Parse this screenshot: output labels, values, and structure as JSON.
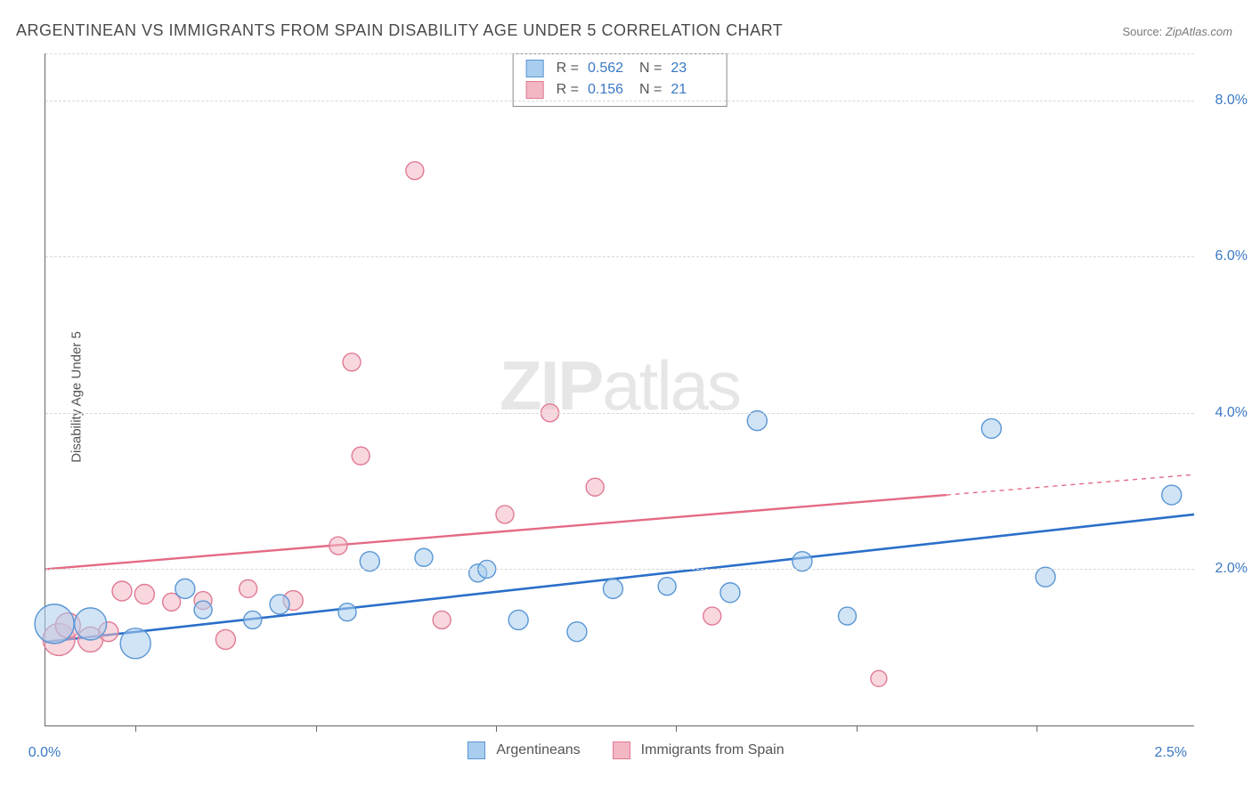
{
  "title": "ARGENTINEAN VS IMMIGRANTS FROM SPAIN DISABILITY AGE UNDER 5 CORRELATION CHART",
  "source": {
    "label": "Source: ",
    "link": "ZipAtlas.com"
  },
  "ylabel": "Disability Age Under 5",
  "watermark": {
    "bold": "ZIP",
    "rest": "atlas"
  },
  "chart": {
    "type": "scatter",
    "background_color": "#ffffff",
    "grid_color": "#d8d8d8",
    "axis_color": "#666666",
    "xlim": [
      0.0,
      2.55
    ],
    "ylim": [
      0.0,
      8.6
    ],
    "yticks": [
      2.0,
      4.0,
      6.0,
      8.0
    ],
    "ytick_labels": [
      "2.0%",
      "4.0%",
      "6.0%",
      "8.0%"
    ],
    "ytick_color": "#3b78c4",
    "ytick_fontsize": 16,
    "xticks_minor": [
      0.2,
      0.6,
      1.0,
      1.4,
      1.8,
      2.2
    ],
    "xaxis_labels": [
      {
        "x": 0.0,
        "text": "0.0%"
      },
      {
        "x": 2.5,
        "text": "2.5%"
      }
    ],
    "xtick_color": "#3b78c4",
    "series": [
      {
        "name": "Argentineans",
        "fill": "#a9cdee",
        "stroke": "#5a96d4",
        "fill_opacity": 0.55,
        "stroke_width": 1.4,
        "regression": {
          "x1": 0.0,
          "y1": 1.07,
          "x2": 2.55,
          "y2": 2.7,
          "color": "#2a6fc9",
          "width": 2.6
        },
        "R": "0.562",
        "N": "23",
        "points": [
          {
            "x": 0.02,
            "y": 1.3,
            "r": 22
          },
          {
            "x": 0.1,
            "y": 1.3,
            "r": 18
          },
          {
            "x": 0.2,
            "y": 1.05,
            "r": 17
          },
          {
            "x": 0.31,
            "y": 1.75,
            "r": 11
          },
          {
            "x": 0.35,
            "y": 1.48,
            "r": 10
          },
          {
            "x": 0.46,
            "y": 1.35,
            "r": 10
          },
          {
            "x": 0.52,
            "y": 1.55,
            "r": 11
          },
          {
            "x": 0.67,
            "y": 1.45,
            "r": 10
          },
          {
            "x": 0.72,
            "y": 2.1,
            "r": 11
          },
          {
            "x": 0.84,
            "y": 2.15,
            "r": 10
          },
          {
            "x": 0.96,
            "y": 1.95,
            "r": 10
          },
          {
            "x": 0.98,
            "y": 2.0,
            "r": 10
          },
          {
            "x": 1.05,
            "y": 1.35,
            "r": 11
          },
          {
            "x": 1.18,
            "y": 1.2,
            "r": 11
          },
          {
            "x": 1.26,
            "y": 1.75,
            "r": 11
          },
          {
            "x": 1.38,
            "y": 1.78,
            "r": 10
          },
          {
            "x": 1.52,
            "y": 1.7,
            "r": 11
          },
          {
            "x": 1.58,
            "y": 3.9,
            "r": 11
          },
          {
            "x": 1.68,
            "y": 2.1,
            "r": 11
          },
          {
            "x": 1.78,
            "y": 1.4,
            "r": 10
          },
          {
            "x": 2.1,
            "y": 3.8,
            "r": 11
          },
          {
            "x": 2.22,
            "y": 1.9,
            "r": 11
          },
          {
            "x": 2.5,
            "y": 2.95,
            "r": 11
          }
        ]
      },
      {
        "name": "Immigrants from Spain",
        "fill": "#f3b7c3",
        "stroke": "#e07a93",
        "fill_opacity": 0.55,
        "stroke_width": 1.4,
        "regression": {
          "x1": 0.0,
          "y1": 2.0,
          "x2": 2.0,
          "y2": 2.95,
          "color": "#e46a84",
          "width": 2.4
        },
        "regression_ext": {
          "x1": 2.0,
          "y1": 2.95,
          "x2": 2.55,
          "y2": 3.21,
          "color": "#e46a84",
          "width": 1.4,
          "dash": "5,5"
        },
        "R": "0.156",
        "N": "21",
        "points": [
          {
            "x": 0.03,
            "y": 1.1,
            "r": 18
          },
          {
            "x": 0.05,
            "y": 1.28,
            "r": 14
          },
          {
            "x": 0.1,
            "y": 1.1,
            "r": 14
          },
          {
            "x": 0.14,
            "y": 1.2,
            "r": 11
          },
          {
            "x": 0.17,
            "y": 1.72,
            "r": 11
          },
          {
            "x": 0.22,
            "y": 1.68,
            "r": 11
          },
          {
            "x": 0.28,
            "y": 1.58,
            "r": 10
          },
          {
            "x": 0.35,
            "y": 1.6,
            "r": 10
          },
          {
            "x": 0.4,
            "y": 1.1,
            "r": 11
          },
          {
            "x": 0.45,
            "y": 1.75,
            "r": 10
          },
          {
            "x": 0.55,
            "y": 1.6,
            "r": 11
          },
          {
            "x": 0.65,
            "y": 2.3,
            "r": 10
          },
          {
            "x": 0.68,
            "y": 4.65,
            "r": 10
          },
          {
            "x": 0.7,
            "y": 3.45,
            "r": 10
          },
          {
            "x": 0.82,
            "y": 7.1,
            "r": 10
          },
          {
            "x": 0.88,
            "y": 1.35,
            "r": 10
          },
          {
            "x": 1.02,
            "y": 2.7,
            "r": 10
          },
          {
            "x": 1.12,
            "y": 4.0,
            "r": 10
          },
          {
            "x": 1.22,
            "y": 3.05,
            "r": 10
          },
          {
            "x": 1.48,
            "y": 1.4,
            "r": 10
          },
          {
            "x": 1.85,
            "y": 0.6,
            "r": 9
          }
        ]
      }
    ]
  },
  "legend": {
    "series1_label": "Argentineans",
    "series2_label": "Immigrants from Spain",
    "swatch1_fill": "#a9cdee",
    "swatch1_border": "#5a96d4",
    "swatch2_fill": "#f3b7c3",
    "swatch2_border": "#e07a93",
    "R_label": "R =",
    "N_label": "N ="
  }
}
